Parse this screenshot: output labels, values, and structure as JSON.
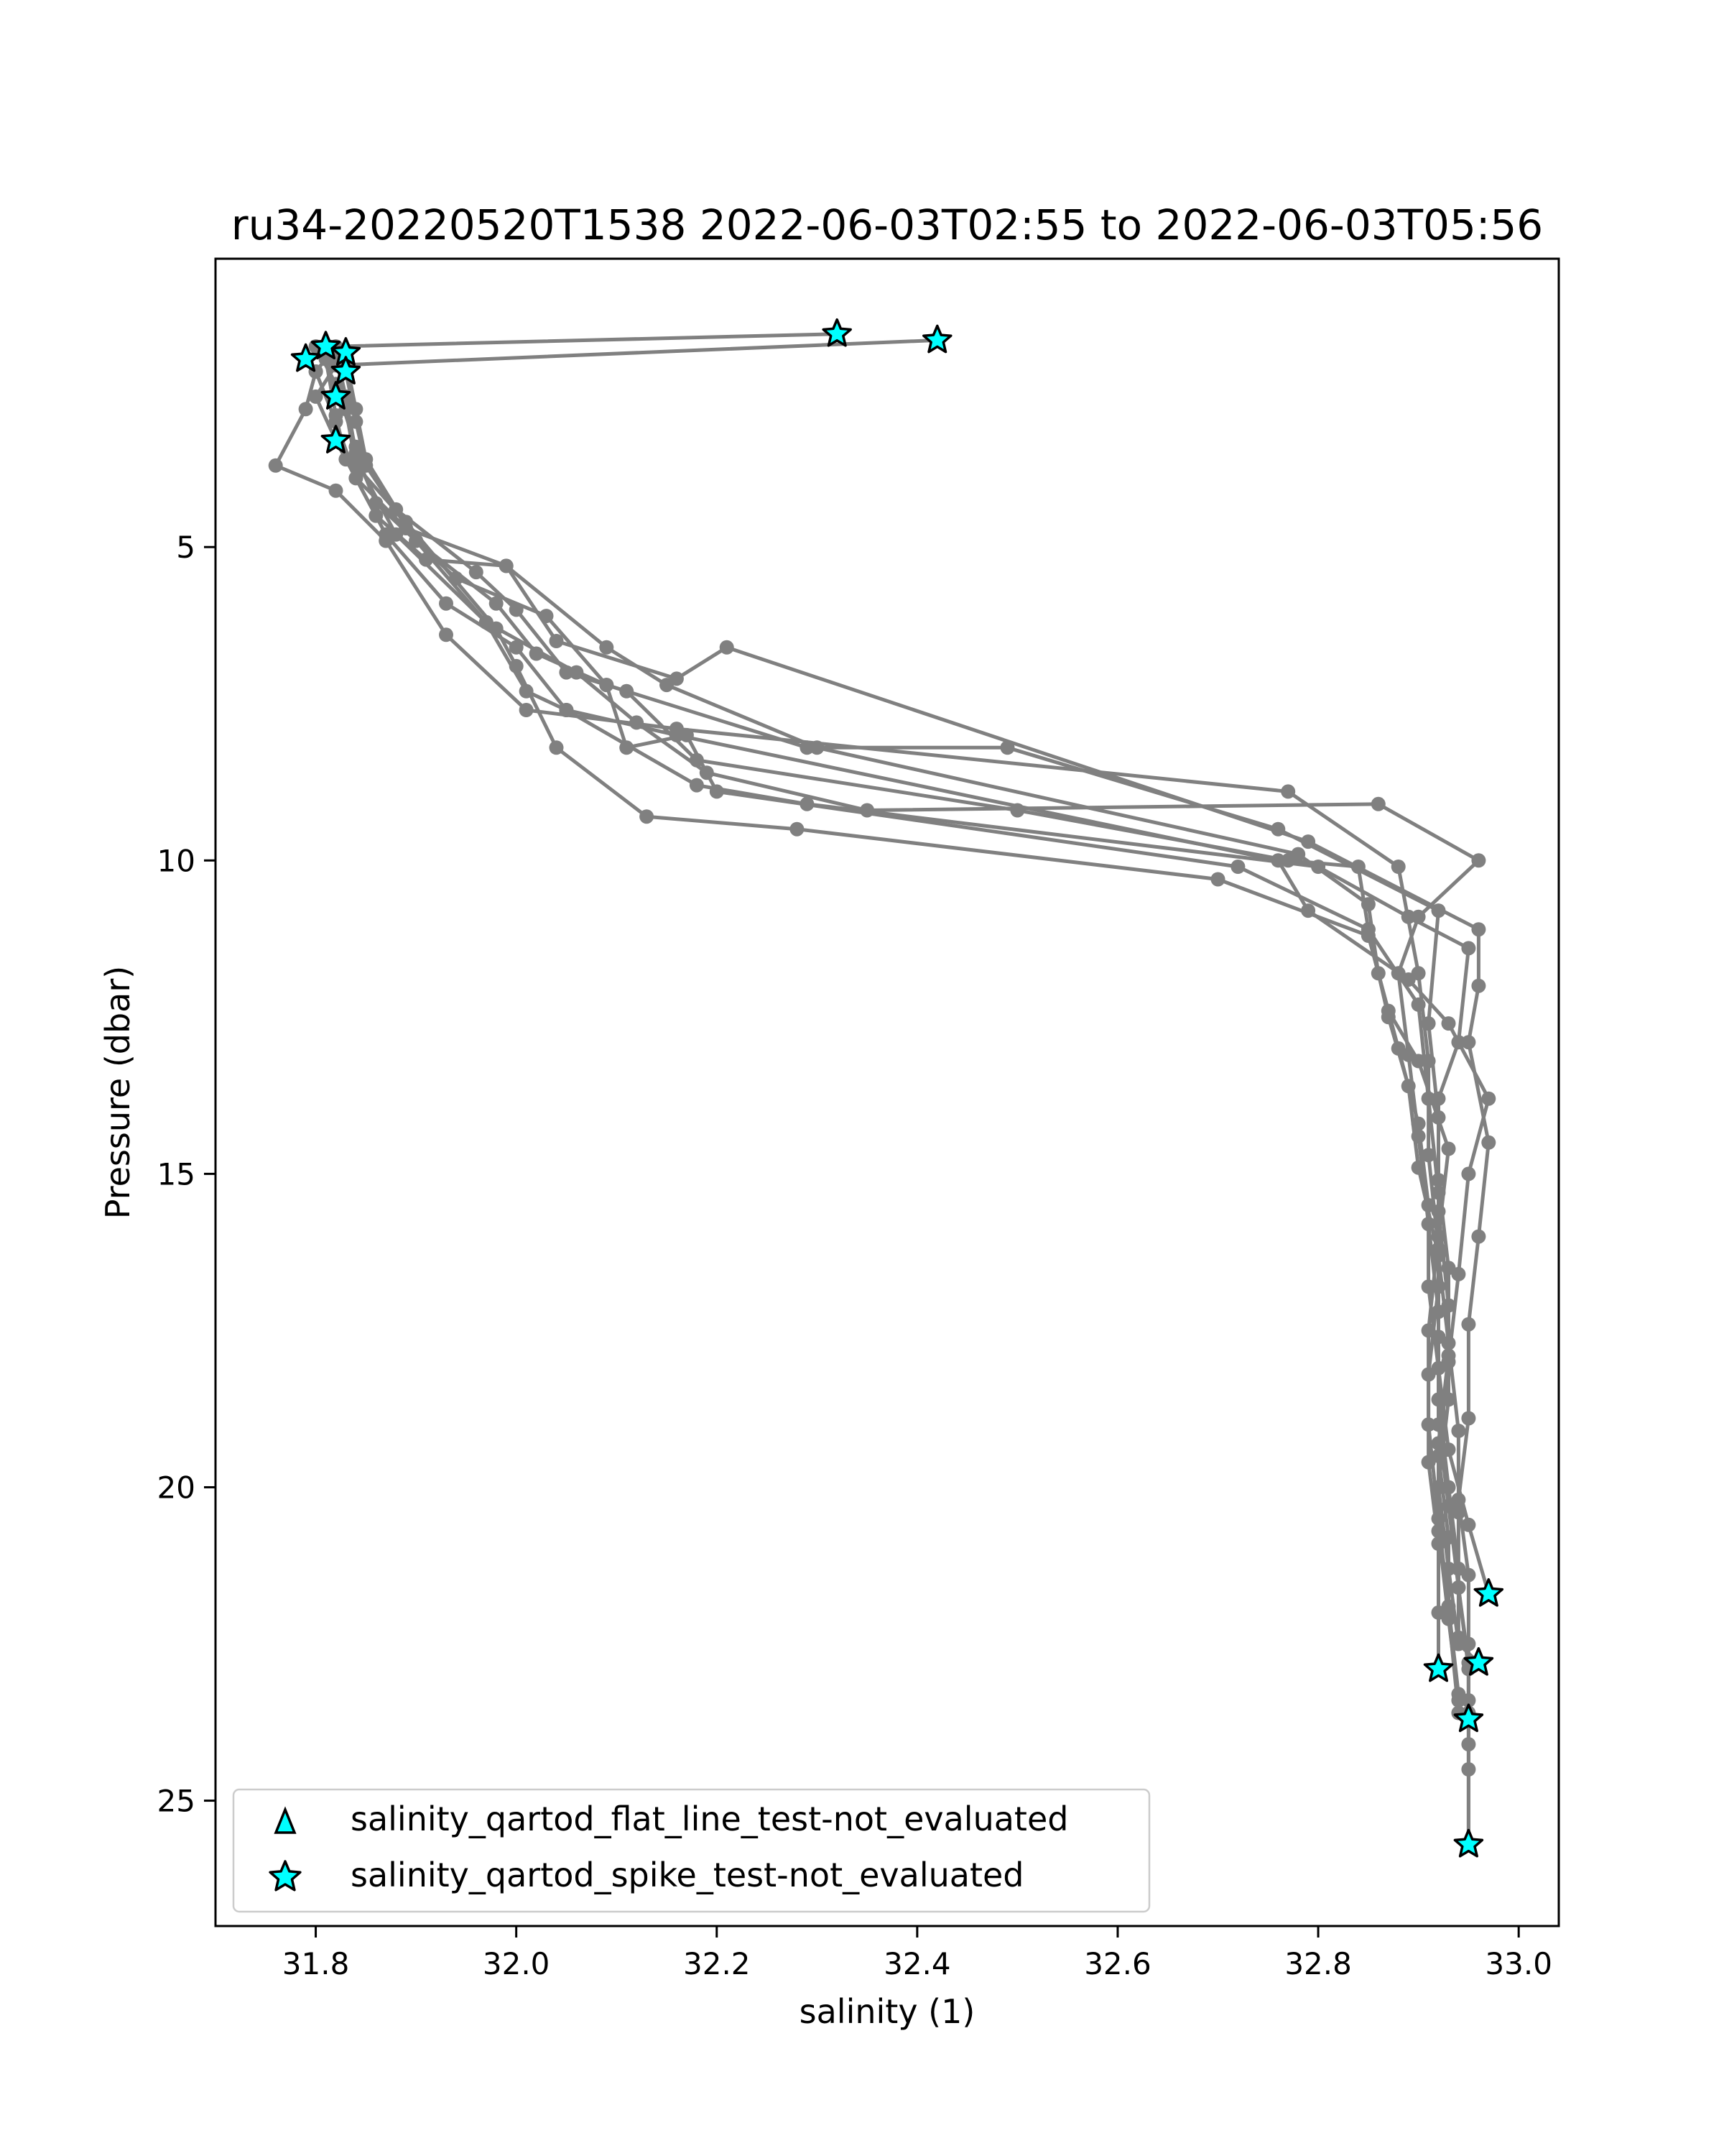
{
  "chart_data": {
    "type": "scatter",
    "title": "ru34-20220520T1538 2022-06-03T02:55 to 2022-06-03T05:56",
    "xlabel": "salinity (1)",
    "ylabel": "Pressure (dbar)",
    "xlim": [
      31.7,
      33.04
    ],
    "ylim": [
      27.0,
      0.4
    ],
    "y_inverted": true,
    "grid": false,
    "legend_position": "lower-left",
    "x_ticks": [
      "31.8",
      "32.0",
      "32.2",
      "32.4",
      "32.6",
      "32.8",
      "33.0"
    ],
    "x_tick_values": [
      31.8,
      32.0,
      32.2,
      32.4,
      32.6,
      32.8,
      33.0
    ],
    "y_ticks": [
      "5",
      "10",
      "15",
      "20",
      "25"
    ],
    "y_tick_values": [
      5,
      10,
      15,
      20,
      25
    ],
    "colors": {
      "profile_line": "#808080",
      "flag_marker_fill": "#00ffff",
      "flag_marker_edge": "#000000"
    },
    "series": [
      {
        "type": "line",
        "color": "#808080",
        "profiles": [
          [
            [
              32.32,
              1.6
            ],
            [
              31.82,
              1.8
            ],
            [
              31.8,
              2.2
            ],
            [
              31.79,
              2.8
            ],
            [
              31.76,
              3.7
            ],
            [
              31.82,
              4.1
            ],
            [
              31.87,
              4.9
            ],
            [
              31.93,
              6.4
            ],
            [
              32.01,
              7.6
            ],
            [
              32.16,
              7.9
            ],
            [
              32.77,
              8.9
            ],
            [
              32.88,
              10.1
            ],
            [
              32.9,
              11.8
            ],
            [
              32.91,
              13.2
            ],
            [
              32.91,
              14.7
            ],
            [
              32.92,
              16.2
            ],
            [
              32.92,
              17.6
            ],
            [
              32.92,
              19.0
            ],
            [
              32.93,
              20.3
            ],
            [
              32.94,
              21.6
            ],
            [
              32.95,
              22.8
            ],
            [
              32.95,
              24.1
            ],
            [
              32.95,
              25.7
            ]
          ],
          [
            [
              32.42,
              1.7
            ],
            [
              31.82,
              2.1
            ],
            [
              31.8,
              2.6
            ],
            [
              31.82,
              3.3
            ],
            [
              31.84,
              3.9
            ],
            [
              31.89,
              4.7
            ],
            [
              31.99,
              5.3
            ],
            [
              32.09,
              6.6
            ],
            [
              32.15,
              7.2
            ],
            [
              32.3,
              8.2
            ],
            [
              32.78,
              9.9
            ],
            [
              32.85,
              10.7
            ],
            [
              32.86,
              11.8
            ],
            [
              32.88,
              13.0
            ],
            [
              32.9,
              14.2
            ],
            [
              32.91,
              15.5
            ],
            [
              32.91,
              16.8
            ],
            [
              32.92,
              18.1
            ],
            [
              32.93,
              19.4
            ],
            [
              32.95,
              20.6
            ],
            [
              32.97,
              21.7
            ]
          ],
          [
            [
              31.82,
              1.9
            ],
            [
              31.83,
              2.6
            ],
            [
              31.84,
              3.5
            ],
            [
              31.86,
              4.3
            ],
            [
              31.94,
              5.5
            ],
            [
              32.03,
              6.1
            ],
            [
              32.09,
              7.2
            ],
            [
              32.29,
              8.2
            ],
            [
              32.49,
              8.2
            ],
            [
              32.76,
              9.5
            ],
            [
              32.92,
              10.8
            ],
            [
              32.91,
              12.6
            ],
            [
              32.92,
              14.1
            ],
            [
              32.92,
              15.6
            ],
            [
              32.93,
              17.1
            ],
            [
              32.93,
              18.6
            ],
            [
              32.92,
              20.0
            ],
            [
              32.93,
              21.3
            ],
            [
              32.94,
              22.5
            ],
            [
              32.96,
              22.8
            ]
          ],
          [
            [
              31.8,
              1.8
            ],
            [
              31.82,
              2.4
            ],
            [
              31.84,
              3.4
            ],
            [
              31.88,
              4.4
            ],
            [
              31.96,
              5.4
            ],
            [
              32.0,
              6.0
            ],
            [
              32.05,
              7.0
            ],
            [
              32.11,
              7.3
            ],
            [
              32.18,
              8.4
            ],
            [
              32.5,
              9.2
            ],
            [
              32.77,
              10.0
            ],
            [
              32.84,
              10.1
            ],
            [
              32.85,
              11.1
            ],
            [
              32.9,
              12.3
            ],
            [
              32.91,
              13.8
            ],
            [
              32.92,
              15.3
            ],
            [
              32.92,
              16.8
            ],
            [
              32.91,
              18.2
            ],
            [
              32.91,
              19.6
            ],
            [
              32.92,
              20.9
            ],
            [
              32.92,
              22.0
            ],
            [
              32.92,
              22.9
            ]
          ],
          [
            [
              31.83,
              2.2
            ],
            [
              31.84,
              3.0
            ],
            [
              31.85,
              3.7
            ],
            [
              31.9,
              4.9
            ],
            [
              31.98,
              5.9
            ],
            [
              32.02,
              6.7
            ],
            [
              32.09,
              7.2
            ],
            [
              32.11,
              8.2
            ],
            [
              32.17,
              8.0
            ],
            [
              32.2,
              8.9
            ],
            [
              32.72,
              10.1
            ],
            [
              32.85,
              11.1
            ],
            [
              32.87,
              12.5
            ],
            [
              32.89,
              13.6
            ],
            [
              32.9,
              14.9
            ],
            [
              32.92,
              16.3
            ],
            [
              32.93,
              17.7
            ],
            [
              32.94,
              19.1
            ],
            [
              32.94,
              20.4
            ],
            [
              32.94,
              21.6
            ],
            [
              32.95,
              22.9
            ],
            [
              32.95,
              23.6
            ]
          ],
          [
            [
              31.81,
              2.0
            ],
            [
              31.82,
              2.9
            ],
            [
              31.83,
              3.6
            ],
            [
              31.86,
              4.5
            ],
            [
              31.91,
              5.2
            ],
            [
              31.99,
              5.3
            ],
            [
              32.04,
              6.5
            ],
            [
              32.16,
              7.1
            ],
            [
              32.21,
              6.6
            ],
            [
              32.79,
              9.7
            ],
            [
              32.96,
              11.1
            ],
            [
              32.96,
              12.0
            ],
            [
              32.95,
              12.9
            ],
            [
              32.97,
              14.5
            ],
            [
              32.96,
              16.0
            ],
            [
              32.95,
              17.4
            ],
            [
              32.95,
              18.9
            ],
            [
              32.94,
              20.2
            ],
            [
              32.95,
              21.4
            ],
            [
              32.95,
              22.5
            ],
            [
              32.95,
              23.4
            ],
            [
              32.95,
              24.5
            ],
            [
              32.95,
              25.7
            ]
          ],
          [
            [
              31.82,
              1.9
            ],
            [
              31.83,
              2.8
            ],
            [
              31.84,
              3.7
            ],
            [
              31.89,
              4.6
            ],
            [
              31.98,
              6.3
            ],
            [
              32.0,
              6.9
            ],
            [
              32.04,
              8.2
            ],
            [
              32.13,
              9.3
            ],
            [
              32.28,
              9.5
            ],
            [
              32.7,
              10.3
            ],
            [
              32.85,
              11.2
            ],
            [
              32.87,
              12.4
            ],
            [
              32.9,
              13.2
            ],
            [
              32.93,
              14.6
            ],
            [
              32.92,
              16.0
            ],
            [
              32.91,
              17.5
            ],
            [
              32.91,
              19.0
            ],
            [
              32.92,
              20.5
            ],
            [
              32.93,
              21.9
            ],
            [
              32.94,
              23.3
            ]
          ],
          [
            [
              31.82,
              1.9
            ],
            [
              31.83,
              2.7
            ],
            [
              31.84,
              3.6
            ],
            [
              31.88,
              4.8
            ],
            [
              31.97,
              6.2
            ],
            [
              32.01,
              7.3
            ],
            [
              32.05,
              7.6
            ],
            [
              32.16,
              8.0
            ],
            [
              32.76,
              10.0
            ],
            [
              32.79,
              10.8
            ],
            [
              32.89,
              11.9
            ],
            [
              32.93,
              12.6
            ],
            [
              32.97,
              13.8
            ],
            [
              32.95,
              15.0
            ],
            [
              32.94,
              16.6
            ],
            [
              32.93,
              18.0
            ],
            [
              32.92,
              19.5
            ],
            [
              32.93,
              20.8
            ],
            [
              32.93,
              22.0
            ],
            [
              32.94,
              23.6
            ]
          ],
          [
            [
              31.8,
              2.2
            ],
            [
              31.82,
              3.0
            ],
            [
              31.84,
              3.9
            ],
            [
              31.87,
              4.8
            ],
            [
              31.93,
              5.9
            ],
            [
              32.0,
              6.6
            ],
            [
              32.05,
              7.6
            ],
            [
              32.18,
              8.8
            ],
            [
              32.29,
              9.1
            ],
            [
              32.8,
              10.1
            ],
            [
              32.89,
              10.9
            ],
            [
              32.95,
              11.4
            ],
            [
              32.94,
              12.9
            ],
            [
              32.92,
              13.8
            ],
            [
              32.92,
              15.1
            ],
            [
              32.93,
              16.5
            ],
            [
              32.93,
              17.9
            ],
            [
              32.92,
              19.3
            ],
            [
              32.92,
              20.7
            ],
            [
              32.93,
              22.1
            ],
            [
              32.94,
              23.4
            ]
          ],
          [
            [
              31.83,
              2.0
            ],
            [
              31.84,
              2.8
            ],
            [
              31.85,
              3.6
            ],
            [
              31.9,
              4.9
            ],
            [
              31.97,
              6.2
            ],
            [
              32.06,
              7.0
            ],
            [
              32.12,
              7.8
            ],
            [
              32.19,
              8.6
            ],
            [
              32.35,
              9.2
            ],
            [
              32.86,
              9.1
            ],
            [
              32.96,
              10.0
            ],
            [
              32.9,
              10.9
            ],
            [
              32.88,
              11.8
            ],
            [
              32.89,
              13.1
            ],
            [
              32.9,
              14.4
            ],
            [
              32.91,
              15.8
            ],
            [
              32.92,
              17.2
            ],
            [
              32.92,
              18.6
            ],
            [
              32.93,
              20.0
            ],
            [
              32.94,
              21.3
            ],
            [
              32.94,
              22.4
            ]
          ]
        ]
      },
      {
        "name": "salinity_qartod_flat_line_test-not_evaluated",
        "type": "scatter",
        "marker": "triangle",
        "points": []
      },
      {
        "name": "salinity_qartod_spike_test-not_evaluated",
        "type": "scatter",
        "marker": "star",
        "points": [
          [
            32.32,
            1.6
          ],
          [
            32.42,
            1.7
          ],
          [
            31.81,
            1.8
          ],
          [
            31.83,
            1.9
          ],
          [
            31.79,
            2.0
          ],
          [
            31.83,
            2.2
          ],
          [
            31.82,
            2.6
          ],
          [
            31.82,
            3.3
          ],
          [
            32.97,
            21.7
          ],
          [
            32.96,
            22.8
          ],
          [
            32.92,
            22.9
          ],
          [
            32.95,
            23.7
          ],
          [
            32.95,
            25.7
          ]
        ]
      }
    ]
  }
}
